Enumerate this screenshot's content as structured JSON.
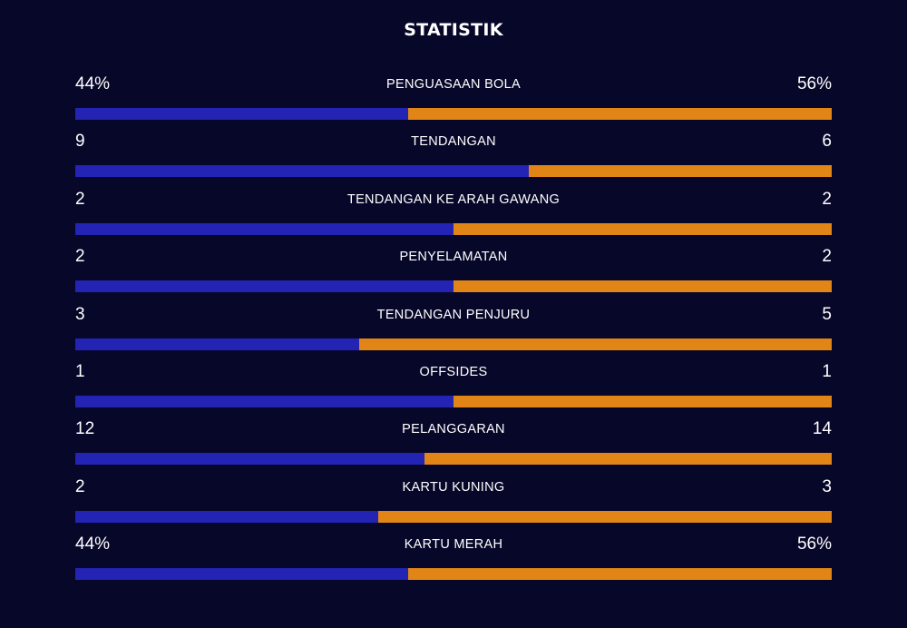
{
  "title": "STATISTIK",
  "colors": {
    "background": "#07072a",
    "home": "#2323b4",
    "away": "#e08516"
  },
  "stats": [
    {
      "label": "PENGUASAAN BOLA",
      "home": "44%",
      "away": "56%",
      "home_share": 0.44
    },
    {
      "label": "TENDANGAN",
      "home": "9",
      "away": "6",
      "home_share": 0.6
    },
    {
      "label": "TENDANGAN KE ARAH GAWANG",
      "home": "2",
      "away": "2",
      "home_share": 0.5
    },
    {
      "label": "PENYELAMATAN",
      "home": "2",
      "away": "2",
      "home_share": 0.5
    },
    {
      "label": "TENDANGAN PENJURU",
      "home": "3",
      "away": "5",
      "home_share": 0.375
    },
    {
      "label": "OFFSIDES",
      "home": "1",
      "away": "1",
      "home_share": 0.5
    },
    {
      "label": "PELANGGARAN",
      "home": "12",
      "away": "14",
      "home_share": 0.4615
    },
    {
      "label": "KARTU KUNING",
      "home": "2",
      "away": "3",
      "home_share": 0.4
    },
    {
      "label": "KARTU MERAH",
      "home": "44%",
      "away": "56%",
      "home_share": 0.44
    }
  ]
}
